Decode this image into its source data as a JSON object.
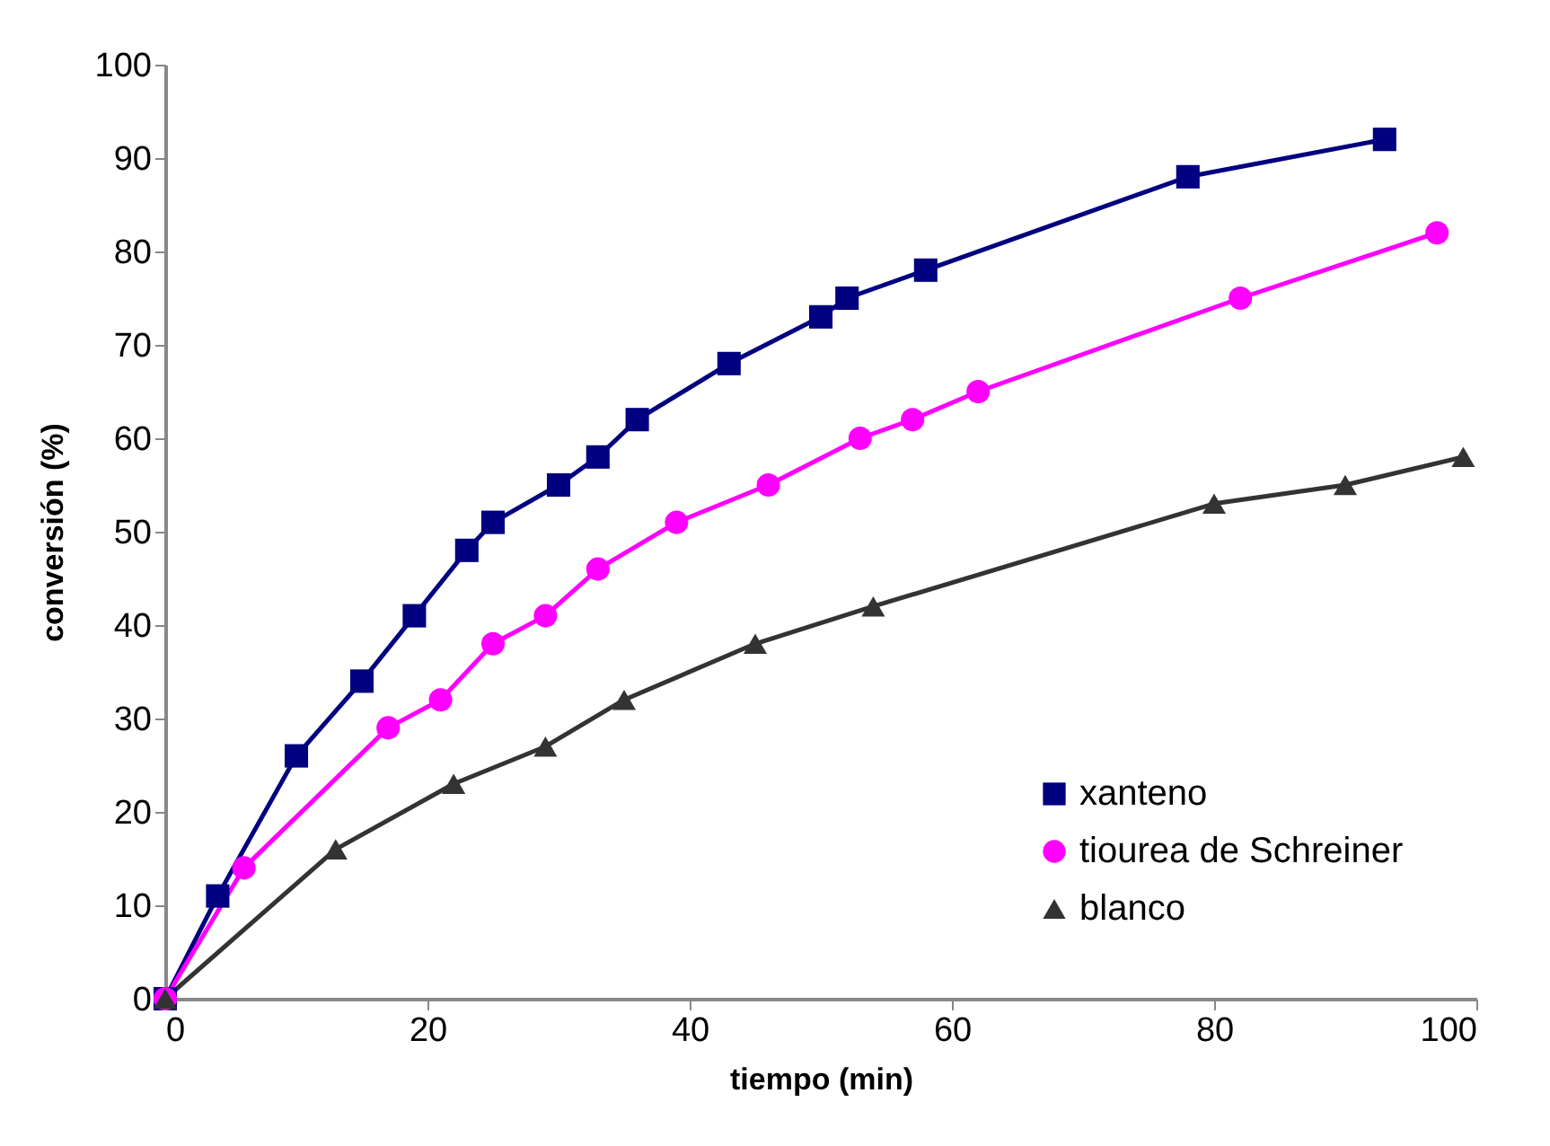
{
  "chart_data": {
    "type": "line",
    "xlabel": "tiempo (min)",
    "ylabel": "conversión (%)",
    "xlim": [
      0,
      100
    ],
    "ylim": [
      0,
      100
    ],
    "xticks": [
      0,
      20,
      40,
      60,
      80,
      100
    ],
    "yticks": [
      0,
      10,
      20,
      30,
      40,
      50,
      60,
      70,
      80,
      90,
      100
    ],
    "grid": false,
    "legend": "bottom right",
    "line_style": "solid",
    "series": [
      {
        "name": "xanteno",
        "color": "#000080",
        "marker": "square",
        "x": [
          0,
          4,
          10,
          15,
          19,
          23,
          25,
          30,
          33,
          36,
          43,
          50,
          52,
          58,
          78,
          93
        ],
        "values": [
          0,
          11,
          26,
          34,
          41,
          48,
          51,
          55,
          58,
          62,
          68,
          73,
          75,
          78,
          88,
          92
        ]
      },
      {
        "name": "tiourea de Schreiner",
        "color": "#ff00ff",
        "marker": "circle",
        "x": [
          0,
          6,
          17,
          21,
          25,
          29,
          33,
          39,
          46,
          53,
          57,
          62,
          82,
          97
        ],
        "values": [
          0,
          14,
          29,
          32,
          38,
          41,
          46,
          51,
          55,
          60,
          62,
          65,
          75,
          82
        ]
      },
      {
        "name": "blanco",
        "color": "#333333",
        "marker": "triangle",
        "x": [
          0,
          13,
          22,
          29,
          35,
          45,
          54,
          80,
          90,
          99
        ],
        "values": [
          0,
          16,
          23,
          27,
          32,
          38,
          42,
          53,
          55,
          58
        ]
      }
    ]
  }
}
